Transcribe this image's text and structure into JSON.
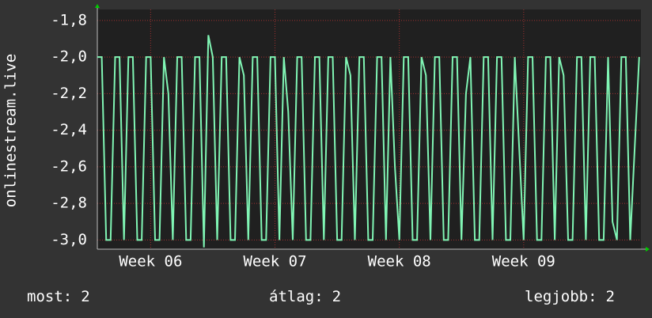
{
  "chart_data": {
    "type": "line",
    "y_label": "onlinestream.live",
    "xlim": [
      0,
      30.6
    ],
    "xticks": [
      {
        "value": 3,
        "label": "Week 06"
      },
      {
        "value": 10,
        "label": "Week 07"
      },
      {
        "value": 17,
        "label": "Week 08"
      },
      {
        "value": 24,
        "label": "Week 09"
      }
    ],
    "ylim": [
      -3.05,
      -1.74
    ],
    "yticks": [
      {
        "value": -1.8,
        "label": "-1,8"
      },
      {
        "value": -2.0,
        "label": "-2,0"
      },
      {
        "value": -2.2,
        "label": "-2,2"
      },
      {
        "value": -2.4,
        "label": "-2,4"
      },
      {
        "value": -2.6,
        "label": "-2,6"
      },
      {
        "value": -2.8,
        "label": "-2,8"
      },
      {
        "value": -3.0,
        "label": "-3,0"
      }
    ],
    "grid": true,
    "x": [
      0,
      0.25,
      0.5,
      0.75,
      1,
      1.25,
      1.5,
      1.75,
      2,
      2.25,
      2.5,
      2.75,
      3,
      3.25,
      3.5,
      3.75,
      4,
      4.25,
      4.5,
      4.75,
      5,
      5.25,
      5.5,
      5.75,
      6,
      6.25,
      6.5,
      6.75,
      7,
      7.25,
      7.5,
      7.75,
      8,
      8.25,
      8.5,
      8.75,
      9,
      9.25,
      9.5,
      9.75,
      10,
      10.25,
      10.5,
      10.75,
      11,
      11.25,
      11.5,
      11.75,
      12,
      12.25,
      12.5,
      12.75,
      13,
      13.25,
      13.5,
      13.75,
      14,
      14.25,
      14.5,
      14.75,
      15,
      15.25,
      15.5,
      15.75,
      16,
      16.25,
      16.5,
      16.75,
      17,
      17.25,
      17.5,
      17.75,
      18,
      18.25,
      18.5,
      18.75,
      19,
      19.25,
      19.5,
      19.75,
      20,
      20.25,
      20.5,
      20.75,
      21,
      21.25,
      21.5,
      21.75,
      22,
      22.25,
      22.5,
      22.75,
      23,
      23.25,
      23.5,
      23.75,
      24,
      24.25,
      24.5,
      24.75,
      25,
      25.25,
      25.5,
      25.75,
      26,
      26.25,
      26.5,
      26.75,
      27,
      27.25,
      27.5,
      27.75,
      28,
      28.25,
      28.5,
      28.75,
      29,
      29.25,
      29.5,
      29.75,
      30,
      30.25,
      30.5
    ],
    "series": [
      {
        "color": "#80f5b4",
        "values": [
          -2,
          -2,
          -3,
          -3,
          -2,
          -2,
          -3,
          -2,
          -2,
          -3,
          -3,
          -2,
          -2,
          -3,
          -3,
          -2,
          -2.2,
          -3,
          -2,
          -2,
          -3,
          -3,
          -2,
          -2,
          -3.04,
          -1.88,
          -2,
          -3,
          -2,
          -2,
          -3,
          -3,
          -2,
          -2.1,
          -3,
          -2,
          -2,
          -3,
          -3,
          -2,
          -2,
          -3,
          -2,
          -2.3,
          -3,
          -2,
          -2,
          -3,
          -3,
          -2,
          -2,
          -3,
          -2,
          -2,
          -3,
          -3,
          -2,
          -2.1,
          -3,
          -2,
          -2,
          -3,
          -3,
          -2,
          -2,
          -3,
          -2,
          -2.6,
          -3,
          -2,
          -2,
          -3,
          -3,
          -2,
          -2.1,
          -3,
          -2,
          -2,
          -3,
          -3,
          -2,
          -2,
          -3,
          -2.2,
          -2,
          -3,
          -3,
          -2,
          -2,
          -3,
          -2,
          -2,
          -3,
          -3,
          -2,
          -2.5,
          -3,
          -2,
          -2,
          -3,
          -3,
          -2,
          -2,
          -3,
          -2,
          -2.1,
          -3,
          -3,
          -2,
          -2,
          -3,
          -2,
          -2,
          -3,
          -3,
          -2,
          -2.9,
          -3,
          -2,
          -2,
          -3,
          -2.5,
          -2
        ]
      }
    ],
    "summary": [
      {
        "label": "most:",
        "value": 2
      },
      {
        "label": "átlag:",
        "value": 2
      },
      {
        "label": "legjobb:",
        "value": 2
      }
    ]
  }
}
